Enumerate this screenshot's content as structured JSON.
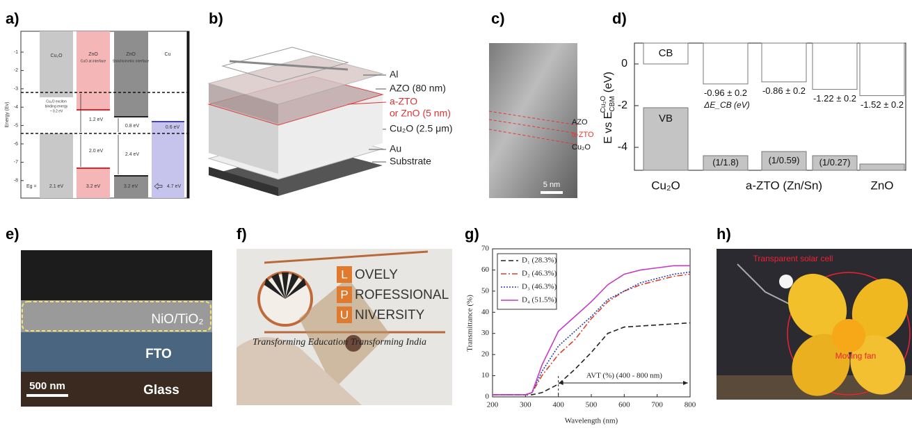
{
  "panels": {
    "a": {
      "label": "a)",
      "axis_title": "Energy (Ev)",
      "yticks": [
        -1,
        -2,
        -3,
        -4,
        -5,
        -6,
        -7,
        -8
      ],
      "columns": [
        "Cu₂O",
        "ZnO",
        "ZnO",
        "Cu"
      ],
      "column_notes": [
        "CuO at interface",
        "Stoichiometric interface"
      ],
      "exciton_note": [
        "Cu₂O exciton",
        "binding energy",
        "~ 0.2 eV"
      ],
      "gaps": [
        "1.2 eV",
        "2.0 eV",
        "0.8 eV",
        "2.4 eV",
        "0.6 eV"
      ],
      "eg_label": "Eg =",
      "bandgaps": [
        "2.1 eV",
        "3.2 eV",
        "3.2 eV",
        "4.7 eV"
      ]
    },
    "b": {
      "label": "b)",
      "layers": [
        "Al",
        "AZO (80 nm)",
        "a-ZTO",
        "or ZnO (5 nm)",
        "Cu₂O (2.5 μm)",
        "Au",
        "Substrate"
      ]
    },
    "c": {
      "label": "c)",
      "layers": [
        "AZO",
        "a-ZTO",
        "Cu₂O"
      ],
      "scale_bar": "5 nm"
    },
    "d": {
      "label": "d)",
      "type": "bar",
      "y_label": [
        "E vs E",
        "CBM",
        "Cu₂O",
        " (eV)"
      ],
      "ylim": [
        -5.1,
        1
      ],
      "yticks": [
        0,
        -2,
        -4
      ],
      "bars": [
        {
          "cb": 0,
          "vb": -2.1,
          "cb_label": "CB",
          "vb_label": "VB"
        },
        {
          "cb": -0.96,
          "vb": -4.4,
          "cb_label": "-0.96 ± 0.2",
          "vb_label": "(1/1.8)"
        },
        {
          "cb": -0.86,
          "vb": -4.2,
          "cb_label": "-0.86 ± 0.2",
          "vb_label": "(1/0.59)"
        },
        {
          "cb": -1.22,
          "vb": -4.4,
          "cb_label": "-1.22 ± 0.2",
          "vb_label": "(1/0.27)"
        },
        {
          "cb": -1.52,
          "vb": -4.8,
          "cb_label": "-1.52 ± 0.2"
        }
      ],
      "delta_label": "ΔE_CB (eV)",
      "categories": [
        "Cu₂O",
        "a-ZTO (Zn/Sn)",
        "ZnO"
      ]
    },
    "e": {
      "label": "e)",
      "layers": [
        "NiO/TiO₂",
        "FTO",
        "Glass"
      ],
      "scale_bar": "500 nm"
    },
    "f": {
      "label": "f)",
      "initials": [
        "L",
        "P",
        "U"
      ],
      "words": [
        "OVELY",
        "ROFESSIONAL",
        "NIVERSITY"
      ],
      "motto": "Transforming Education Transforming India"
    },
    "g": {
      "label": "g)",
      "type": "line",
      "x_label": "Wavelength (nm)",
      "y_label": "Transmittance (%)",
      "xlim": [
        200,
        800
      ],
      "ylim": [
        0,
        70
      ],
      "xticks": [
        200,
        300,
        400,
        500,
        600,
        700,
        800
      ],
      "yticks": [
        0,
        10,
        20,
        30,
        40,
        50,
        60,
        70
      ],
      "x": [
        200,
        300,
        320,
        350,
        400,
        450,
        500,
        550,
        600,
        650,
        700,
        750,
        800
      ],
      "series": [
        {
          "name": "D₁ (28.3%)",
          "color": "#222222",
          "linestyle": "dashed",
          "values": [
            1,
            1,
            1,
            2,
            6,
            13,
            21,
            30,
            33,
            33.5,
            34,
            34.5,
            35
          ]
        },
        {
          "name": "D₂ (46.3%)",
          "color": "#d9412b",
          "linestyle": "dashdot",
          "values": [
            1,
            1,
            2,
            10,
            20,
            27,
            37,
            45,
            50,
            53,
            55,
            57,
            58
          ]
        },
        {
          "name": "D₃ (46.3%)",
          "color": "#2a3aa8",
          "linestyle": "dotted",
          "values": [
            1,
            1,
            2,
            12,
            24,
            31,
            38,
            46,
            50,
            54,
            56,
            58,
            59
          ]
        },
        {
          "name": "D₄ (51.5%)",
          "color": "#c43cc4",
          "linestyle": "solid",
          "values": [
            1,
            1,
            2,
            15,
            31,
            38,
            45,
            53,
            58,
            60,
            61,
            62,
            62
          ]
        }
      ],
      "annotation": "AVT (%) (400 - 800 nm)"
    },
    "h": {
      "label": "h)",
      "labels": [
        "Transparent solar cell",
        "Moving fan"
      ]
    }
  }
}
